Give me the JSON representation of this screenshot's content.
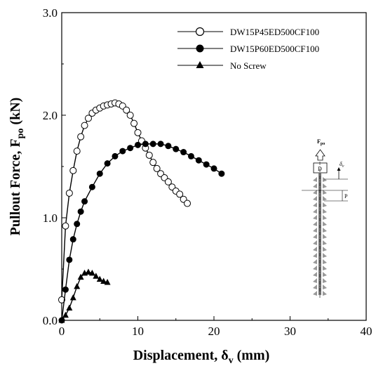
{
  "chart_data": {
    "type": "line",
    "xlabel_main": "Displacement, δ",
    "xlabel_sub": "v",
    "xlabel_unit": " (mm)",
    "ylabel_main": "Pullout Force, F",
    "ylabel_sub": "po",
    "ylabel_unit": " (kN)",
    "xlim": [
      0,
      40
    ],
    "ylim": [
      0,
      3
    ],
    "xticks": [
      "0",
      "10",
      "20",
      "30",
      "40"
    ],
    "yticks": [
      "0.0",
      "1.0",
      "2.0",
      "3.0"
    ],
    "grid": false,
    "legend_position": "top-right",
    "series": [
      {
        "name": "DW15P45ED500CF100",
        "marker": "open-circle",
        "color": "#000000",
        "x": [
          0,
          0.5,
          1,
          1.5,
          2,
          2.5,
          3,
          3.5,
          4,
          4.5,
          5,
          5.5,
          6,
          6.5,
          7,
          7.5,
          8,
          8.5,
          9,
          9.5,
          10,
          10.5,
          11,
          11.5,
          12,
          12.5,
          13,
          13.5,
          14,
          14.5,
          15,
          15.5,
          16,
          16.5
        ],
        "y": [
          0.2,
          0.92,
          1.24,
          1.46,
          1.65,
          1.79,
          1.9,
          1.97,
          2.02,
          2.05,
          2.07,
          2.09,
          2.1,
          2.11,
          2.12,
          2.11,
          2.09,
          2.05,
          2.0,
          1.92,
          1.83,
          1.75,
          1.68,
          1.61,
          1.54,
          1.48,
          1.43,
          1.39,
          1.35,
          1.3,
          1.26,
          1.23,
          1.18,
          1.14
        ]
      },
      {
        "name": "DW15P60ED500CF100",
        "marker": "filled-circle",
        "color": "#000000",
        "x": [
          0,
          0.5,
          1,
          1.5,
          2,
          2.5,
          3,
          4,
          5,
          6,
          7,
          8,
          9,
          10,
          11,
          12,
          13,
          14,
          15,
          16,
          17,
          18,
          19,
          20,
          21
        ],
        "y": [
          0,
          0.3,
          0.59,
          0.79,
          0.94,
          1.06,
          1.16,
          1.3,
          1.43,
          1.53,
          1.6,
          1.65,
          1.68,
          1.71,
          1.72,
          1.72,
          1.72,
          1.7,
          1.67,
          1.64,
          1.6,
          1.56,
          1.52,
          1.48,
          1.43
        ]
      },
      {
        "name": "No Screw",
        "marker": "filled-triangle",
        "color": "#000000",
        "x": [
          0,
          0.5,
          1,
          1.5,
          2,
          2.5,
          3,
          3.5,
          4,
          4.5,
          5,
          5.5,
          6
        ],
        "y": [
          0,
          0.05,
          0.12,
          0.22,
          0.33,
          0.42,
          0.46,
          0.47,
          0.46,
          0.43,
          0.4,
          0.38,
          0.37
        ]
      }
    ]
  },
  "inset": {
    "force_label": "F",
    "force_sub": "po",
    "delta_label": "δ",
    "delta_sub": "v",
    "d_label": "D",
    "p_label": "P"
  }
}
